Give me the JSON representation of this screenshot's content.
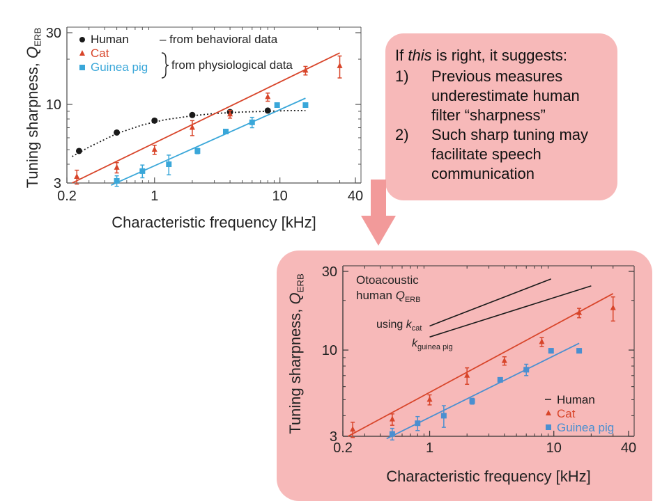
{
  "colors": {
    "human": "#1a1a1a",
    "cat": "#d8452a",
    "guinea_pig": "#3aa7d9",
    "guinea_pig_panel2": "#4a8fd0",
    "note_background": "#f7b9b9",
    "arrow": "#f29a9a"
  },
  "note": {
    "intro_before": "If ",
    "intro_emph": "this",
    "intro_after": " is right, it suggests:",
    "items": [
      {
        "num": "1)",
        "text": "Previous measures underestimate human filter “sharpness”"
      },
      {
        "num": "2)",
        "text": "Such sharp tuning may facilitate speech communication"
      }
    ]
  },
  "chart_data": [
    {
      "type": "scatter",
      "scale": "log-log",
      "xlabel": "Characteristic frequency [kHz]",
      "ylabel_main": "Tuning sharpness, ",
      "ylabel_symbol": "Q",
      "ylabel_sub": "ERB",
      "xlim": [
        0.2,
        40
      ],
      "ylim": [
        3,
        30
      ],
      "xticks": [
        0.2,
        1,
        10,
        40
      ],
      "xtick_labels": [
        "0.2",
        "1",
        "10",
        "40"
      ],
      "yticks": [
        3,
        10,
        30
      ],
      "ytick_labels": [
        "3",
        "10",
        "30"
      ],
      "legend": {
        "position": "top-left",
        "entries": [
          {
            "marker": "circle",
            "label": "Human",
            "note": "– from behavioral data"
          },
          {
            "marker": "triangle",
            "label": "Cat",
            "note": "from physiological data"
          },
          {
            "marker": "square",
            "label": "Guinea pig",
            "note": ""
          }
        ]
      },
      "series": [
        {
          "name": "Human",
          "points": [
            [
              0.25,
              4.9
            ],
            [
              0.5,
              6.5
            ],
            [
              1.0,
              7.8
            ],
            [
              2.0,
              8.5
            ],
            [
              4.0,
              8.9
            ],
            [
              8.0,
              9.1
            ]
          ],
          "fit": {
            "style": "dotted",
            "x": [
              0.22,
              0.3,
              0.5,
              0.8,
              1.2,
              2.0,
              3.0,
              5.0,
              8.0,
              12.0,
              16.0
            ],
            "y": [
              4.5,
              5.2,
              6.4,
              7.3,
              7.9,
              8.4,
              8.7,
              8.9,
              9.0,
              9.1,
              9.1
            ]
          }
        },
        {
          "name": "Cat",
          "points": [
            [
              0.24,
              3.3
            ],
            [
              0.5,
              3.8
            ],
            [
              1.0,
              5.0
            ],
            [
              2.0,
              7.0
            ],
            [
              4.0,
              8.6
            ],
            [
              8.0,
              11.2
            ],
            [
              16.0,
              16.8
            ],
            [
              30.0,
              18.0
            ]
          ],
          "errors": [
            0.35,
            0.3,
            0.35,
            0.8,
            0.5,
            0.7,
            1.1,
            3.0
          ],
          "fit": {
            "style": "solid",
            "x": [
              0.22,
              30.0
            ],
            "y": [
              3.0,
              22.0
            ]
          }
        },
        {
          "name": "Guinea pig",
          "points": [
            [
              0.5,
              3.1
            ],
            [
              0.8,
              3.6
            ],
            [
              1.3,
              4.0
            ],
            [
              2.2,
              4.9
            ],
            [
              3.7,
              6.6
            ],
            [
              6.0,
              7.6
            ],
            [
              9.5,
              9.9
            ],
            [
              16.0,
              9.9
            ]
          ],
          "errors": [
            0.25,
            0.35,
            0.6,
            0.2,
            0.2,
            0.6,
            0.3,
            0.3
          ],
          "fit": {
            "style": "solid",
            "x": [
              0.45,
              16.0
            ],
            "y": [
              2.9,
              11.0
            ]
          }
        }
      ]
    },
    {
      "type": "line",
      "scale": "log-log",
      "xlabel": "Characteristic frequency [kHz]",
      "ylabel_main": "Tuning sharpness, ",
      "ylabel_symbol": "Q",
      "ylabel_sub": "ERB",
      "xlim": [
        0.2,
        40
      ],
      "ylim": [
        3,
        30
      ],
      "xticks": [
        0.2,
        1,
        10,
        40
      ],
      "xtick_labels": [
        "0.2",
        "1",
        "10",
        "40"
      ],
      "yticks": [
        3,
        10,
        30
      ],
      "ytick_labels": [
        "3",
        "10",
        "30"
      ],
      "annotations": {
        "title_line1": "Otoacoustic",
        "title_line2_main": "human ",
        "title_line2_symbol": "Q",
        "title_line2_sub": "ERB",
        "using_k": "using ",
        "k_symbol": "k",
        "k_cat_sub": "cat",
        "k_gp_sub": "guinea pig"
      },
      "legend": {
        "position": "bottom-right",
        "entries": [
          {
            "marker": "line",
            "label": "Human"
          },
          {
            "marker": "triangle",
            "label": "Cat"
          },
          {
            "marker": "square",
            "label": "Guinea pig"
          }
        ]
      },
      "series": [
        {
          "name": "Human",
          "kind": "lines",
          "lines": [
            {
              "x": [
                1.0,
                9.5
              ],
              "y": [
                14.0,
                27.0
              ]
            },
            {
              "x": [
                1.0,
                20.0
              ],
              "y": [
                12.0,
                24.5
              ]
            }
          ]
        },
        {
          "name": "Cat",
          "points": [
            [
              0.24,
              3.3
            ],
            [
              0.5,
              3.8
            ],
            [
              1.0,
              5.0
            ],
            [
              2.0,
              7.0
            ],
            [
              4.0,
              8.6
            ],
            [
              8.0,
              11.2
            ],
            [
              16.0,
              16.8
            ],
            [
              30.0,
              18.0
            ]
          ],
          "errors": [
            0.35,
            0.3,
            0.35,
            0.8,
            0.5,
            0.7,
            1.1,
            3.0
          ],
          "fit": {
            "style": "solid",
            "x": [
              0.22,
              30.0
            ],
            "y": [
              3.0,
              22.0
            ]
          }
        },
        {
          "name": "Guinea pig",
          "points": [
            [
              0.5,
              3.1
            ],
            [
              0.8,
              3.6
            ],
            [
              1.3,
              4.0
            ],
            [
              2.2,
              4.9
            ],
            [
              3.7,
              6.6
            ],
            [
              6.0,
              7.6
            ],
            [
              9.5,
              9.9
            ],
            [
              16.0,
              9.9
            ]
          ],
          "errors": [
            0.25,
            0.35,
            0.6,
            0.2,
            0.2,
            0.6,
            0.3,
            0.3
          ],
          "fit": {
            "style": "solid",
            "x": [
              0.45,
              16.0
            ],
            "y": [
              2.9,
              11.0
            ]
          }
        }
      ]
    }
  ]
}
